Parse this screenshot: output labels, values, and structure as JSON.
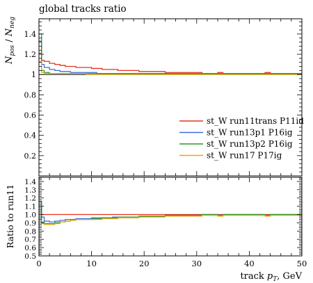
{
  "chart_data": [
    {
      "type": "line",
      "panel": "main",
      "title": "global tracks ratio",
      "ylabel": "N_pos / N_neg",
      "xlim": [
        0,
        50
      ],
      "ylim": [
        0,
        1.55
      ],
      "yticks": [
        0.2,
        0.4,
        0.6,
        0.8,
        1,
        1.2,
        1.4
      ],
      "ytick_labels": [
        "0.2",
        "0.4",
        "0.6",
        "0.8",
        "1",
        "1.2",
        "1.4"
      ],
      "reference_line": 1.0,
      "legend": "lower-right",
      "bin_edges": [
        0,
        0.5,
        1,
        2,
        3,
        4,
        5,
        6,
        7,
        8,
        9,
        10,
        11,
        12,
        13,
        14,
        15,
        16,
        17,
        18,
        19,
        20,
        21,
        22,
        23,
        24,
        25,
        26,
        27,
        28,
        29,
        30,
        31,
        32,
        33,
        34,
        35,
        36,
        37,
        38,
        39,
        40,
        41,
        42,
        43,
        44,
        45,
        46,
        47,
        48,
        49,
        50
      ],
      "series": [
        {
          "name": "st_W run11trans P11id",
          "color": "#e8301c",
          "values": [
            1.21,
            1.14,
            1.13,
            1.11,
            1.1,
            1.09,
            1.08,
            1.08,
            1.07,
            1.07,
            1.07,
            1.06,
            1.06,
            1.05,
            1.05,
            1.05,
            1.04,
            1.04,
            1.04,
            1.04,
            1.03,
            1.03,
            1.03,
            1.03,
            1.03,
            1.02,
            1.02,
            1.02,
            1.02,
            1.02,
            1.02,
            1.02,
            1.01,
            1.01,
            1.01,
            1.02,
            1.01,
            1.01,
            1.01,
            1.01,
            1.01,
            1.01,
            1.01,
            1.01,
            1.02,
            1.01,
            1.01,
            1.01,
            1.01,
            1.01,
            1.01
          ]
        },
        {
          "name": "st_W run13p1 P16ig",
          "color": "#3a6ee5",
          "values": [
            1.33,
            1.1,
            1.07,
            1.05,
            1.04,
            1.03,
            1.03,
            1.02,
            1.02,
            1.02,
            1.02,
            1.02,
            1.01,
            1.01,
            1.01,
            1.01,
            1.01,
            1.01,
            1.01,
            1.01,
            1.01,
            1.01,
            1.01,
            1.01,
            1.01,
            1.01,
            1.01,
            1.01,
            1.01,
            1.01,
            1.01,
            1.01,
            1.01,
            1.01,
            1.01,
            1.01,
            1.01,
            1.01,
            1.01,
            1.01,
            1.01,
            1.01,
            1.01,
            1.01,
            1.01,
            1.01,
            1.01,
            1.01,
            1.01,
            1.01,
            1.01
          ]
        },
        {
          "name": "st_W run13p2 P16ig",
          "color": "#2a9a2a",
          "values": [
            1.4,
            1.04,
            1.02,
            1.01,
            1.01,
            1.01,
            1.01,
            1.01,
            1.01,
            1.01,
            1.01,
            1.01,
            1.01,
            1.01,
            1.01,
            1.01,
            1.01,
            1.01,
            1.01,
            1.01,
            1.01,
            1.01,
            1.01,
            1.01,
            1.01,
            1.01,
            1.01,
            1.01,
            1.01,
            1.01,
            1.01,
            1.01,
            1.01,
            1.01,
            1.01,
            1.01,
            1.01,
            1.01,
            1.01,
            1.01,
            1.01,
            1.01,
            1.01,
            1.01,
            1.01,
            1.01,
            1.01,
            1.01,
            1.01,
            1.01,
            1.01
          ]
        },
        {
          "name": "st_W run17 P17ig",
          "color": "#e6a817",
          "values": [
            1.13,
            1.02,
            1.01,
            1.01,
            1.01,
            1.01,
            1.01,
            1.01,
            1.01,
            1.01,
            1.0,
            1.0,
            1.0,
            1.0,
            1.0,
            1.0,
            1.0,
            1.0,
            1.0,
            1.0,
            1.0,
            1.0,
            1.0,
            1.0,
            1.0,
            1.0,
            1.0,
            1.0,
            1.0,
            1.0,
            1.0,
            1.0,
            1.0,
            1.0,
            1.0,
            1.0,
            1.0,
            1.0,
            1.0,
            1.0,
            1.0,
            1.0,
            1.0,
            1.0,
            1.0,
            1.0,
            1.0,
            1.0,
            1.0,
            1.0,
            1.0
          ]
        }
      ]
    },
    {
      "type": "line",
      "panel": "ratio",
      "ylabel": "Ratio to run11",
      "xlabel": "track p_T, GeV",
      "xlim": [
        0,
        50
      ],
      "ylim": [
        0.5,
        1.45
      ],
      "xticks": [
        0,
        10,
        20,
        30,
        40,
        50
      ],
      "xtick_labels": [
        "0",
        "10",
        "20",
        "30",
        "40",
        "50"
      ],
      "yticks": [
        0.5,
        0.6,
        0.7,
        0.8,
        0.9,
        1.0,
        1.1,
        1.2,
        1.3,
        1.4
      ],
      "ytick_labels": [
        "0.5",
        "0.6",
        "0.7",
        "0.8",
        "0.9",
        "1.0",
        "1.1",
        "1.2",
        "1.3",
        "1.4"
      ],
      "reference_line": 1.0,
      "bin_edges": [
        0,
        0.5,
        1,
        2,
        3,
        4,
        5,
        6,
        7,
        8,
        9,
        10,
        11,
        12,
        13,
        14,
        15,
        16,
        17,
        18,
        19,
        20,
        21,
        22,
        23,
        24,
        25,
        26,
        27,
        28,
        29,
        30,
        31,
        32,
        33,
        34,
        35,
        36,
        37,
        38,
        39,
        40,
        41,
        42,
        43,
        44,
        45,
        46,
        47,
        48,
        49,
        50
      ],
      "series": [
        {
          "name": "st_W run11trans P11id",
          "color": "#e8301c",
          "values": [
            1.0,
            1.0,
            1.0,
            1.0,
            1.0,
            1.0,
            1.0,
            1.0,
            1.0,
            1.0,
            1.0,
            1.0,
            1.0,
            1.0,
            1.0,
            1.0,
            1.0,
            1.0,
            1.0,
            1.0,
            1.0,
            1.0,
            1.0,
            1.0,
            1.0,
            1.0,
            1.0,
            1.0,
            1.0,
            1.0,
            1.0,
            1.0,
            1.0,
            1.0,
            1.0,
            1.0,
            1.0,
            1.0,
            1.0,
            1.0,
            1.0,
            1.0,
            1.0,
            1.0,
            1.0,
            1.0,
            1.0,
            1.0,
            1.0,
            1.0,
            1.0
          ]
        },
        {
          "name": "st_W run13p1 P16ig",
          "color": "#3a6ee5",
          "values": [
            1.1,
            0.97,
            0.92,
            0.91,
            0.92,
            0.93,
            0.94,
            0.94,
            0.95,
            0.95,
            0.95,
            0.96,
            0.96,
            0.96,
            0.96,
            0.97,
            0.97,
            0.97,
            0.97,
            0.97,
            0.98,
            0.98,
            0.98,
            0.98,
            0.98,
            0.99,
            0.99,
            0.99,
            0.99,
            0.99,
            0.99,
            0.99,
            1.0,
            1.0,
            1.0,
            0.99,
            1.0,
            1.0,
            1.0,
            1.0,
            1.0,
            1.0,
            1.0,
            1.0,
            0.99,
            1.0,
            1.0,
            1.0,
            1.0,
            1.0,
            1.0
          ]
        },
        {
          "name": "st_W run13p2 P16ig",
          "color": "#2a9a2a",
          "values": [
            1.16,
            0.91,
            0.89,
            0.89,
            0.9,
            0.91,
            0.92,
            0.93,
            0.94,
            0.94,
            0.94,
            0.95,
            0.95,
            0.96,
            0.96,
            0.96,
            0.97,
            0.97,
            0.97,
            0.97,
            0.98,
            0.98,
            0.98,
            0.98,
            0.98,
            0.99,
            0.99,
            0.99,
            0.99,
            0.99,
            0.99,
            0.99,
            1.0,
            1.0,
            1.0,
            0.99,
            1.0,
            1.0,
            1.0,
            1.0,
            1.0,
            1.0,
            1.0,
            1.0,
            0.99,
            1.0,
            1.0,
            1.0,
            1.0,
            1.0,
            1.0
          ]
        },
        {
          "name": "st_W run17 P17ig",
          "color": "#e6a817",
          "values": [
            0.94,
            0.89,
            0.88,
            0.88,
            0.89,
            0.91,
            0.92,
            0.93,
            0.94,
            0.94,
            0.94,
            0.94,
            0.94,
            0.95,
            0.95,
            0.95,
            0.96,
            0.96,
            0.96,
            0.96,
            0.97,
            0.97,
            0.97,
            0.97,
            0.97,
            0.98,
            0.98,
            0.98,
            0.98,
            0.98,
            0.98,
            0.98,
            0.99,
            0.99,
            0.99,
            0.98,
            0.99,
            0.99,
            0.99,
            0.99,
            0.99,
            0.99,
            0.99,
            0.99,
            0.98,
            0.99,
            0.99,
            0.99,
            0.99,
            0.99,
            0.99
          ]
        }
      ]
    }
  ]
}
